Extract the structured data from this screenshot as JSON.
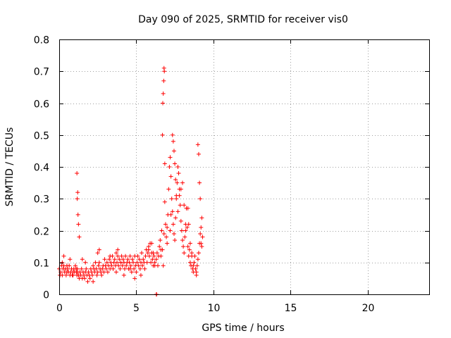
{
  "chart_data": {
    "type": "scatter",
    "title": "Day 090 of 2025, SRMTID for receiver vis0",
    "xlabel": "GPS time / hours",
    "ylabel": "SRMTID / TECUs",
    "xlim": [
      0,
      24
    ],
    "ylim": [
      0,
      0.8
    ],
    "xticks": [
      0,
      5,
      10,
      15,
      20
    ],
    "yticks": [
      0,
      0.1,
      0.2,
      0.3,
      0.4,
      0.5,
      0.6,
      0.7,
      0.8
    ],
    "xtick_labels": [
      "0",
      "5",
      "10",
      "15",
      "20"
    ],
    "ytick_labels": [
      "0",
      "0.1",
      "0.2",
      "0.3",
      "0.4",
      "0.5",
      "0.6",
      "0.7",
      "0.8"
    ],
    "grid": true,
    "marker": "+",
    "color": "#ff0000",
    "series": [
      {
        "name": "vis0",
        "x": [
          0.0,
          0.1,
          0.15,
          0.2,
          0.25,
          0.3,
          0.35,
          0.4,
          0.45,
          0.5,
          0.55,
          0.6,
          0.65,
          0.7,
          0.75,
          0.8,
          0.85,
          0.9,
          0.95,
          1.0,
          1.05,
          1.1,
          1.12,
          1.15,
          1.18,
          1.2,
          1.25,
          1.3,
          1.35,
          1.4,
          1.45,
          1.5,
          1.55,
          1.6,
          1.65,
          1.7,
          1.75,
          1.8,
          1.85,
          1.9,
          1.95,
          2.0,
          2.05,
          2.1,
          2.15,
          2.2,
          2.25,
          2.3,
          2.35,
          2.4,
          2.45,
          2.5,
          2.55,
          2.6,
          2.65,
          2.7,
          2.75,
          2.8,
          2.85,
          2.9,
          2.95,
          3.0,
          3.05,
          3.1,
          3.15,
          3.2,
          3.25,
          3.3,
          3.35,
          3.4,
          3.45,
          3.5,
          3.55,
          3.6,
          3.65,
          3.7,
          3.75,
          3.8,
          3.85,
          3.9,
          3.95,
          4.0,
          4.05,
          4.1,
          4.15,
          4.2,
          4.25,
          4.3,
          4.35,
          4.4,
          4.45,
          4.5,
          4.55,
          4.6,
          4.65,
          4.7,
          4.75,
          4.8,
          4.85,
          4.9,
          4.95,
          5.0,
          5.05,
          5.1,
          5.15,
          5.2,
          5.25,
          5.3,
          5.35,
          5.4,
          5.45,
          5.5,
          5.55,
          5.6,
          5.65,
          5.7,
          5.75,
          5.8,
          5.85,
          5.9,
          5.95,
          6.0,
          6.05,
          6.1,
          6.15,
          6.2,
          6.3,
          6.35,
          6.4,
          6.45,
          6.5,
          6.55,
          6.6,
          6.65,
          6.7,
          6.72,
          6.75,
          6.78,
          6.8,
          6.82,
          6.85,
          6.9,
          6.95,
          7.0,
          7.05,
          7.1,
          7.15,
          7.2,
          7.25,
          7.3,
          7.35,
          7.4,
          7.45,
          7.5,
          7.55,
          7.6,
          7.65,
          7.7,
          7.75,
          7.8,
          7.85,
          7.9,
          7.95,
          8.0,
          8.05,
          8.1,
          8.15,
          8.2,
          8.25,
          8.3,
          8.35,
          8.4,
          8.45,
          8.5,
          8.55,
          8.6,
          8.65,
          8.7,
          8.75,
          8.8,
          8.85,
          8.9,
          8.95,
          9.0,
          9.05,
          9.1,
          9.15,
          9.2,
          9.25,
          9.3,
          0.05,
          0.2,
          0.3,
          0.5,
          0.7,
          0.9,
          1.15,
          1.17,
          1.2,
          1.22,
          1.25,
          1.3,
          1.5,
          1.7,
          2.2,
          2.5,
          2.6,
          3.3,
          3.7,
          3.8,
          4.0,
          4.2,
          4.6,
          4.9,
          5.3,
          5.8,
          6.0,
          6.1,
          6.2,
          6.6,
          6.7,
          6.75,
          6.8,
          6.85,
          7.0,
          7.2,
          7.25,
          7.35,
          7.4,
          7.45,
          7.5,
          7.55,
          7.6,
          7.7,
          7.8,
          7.9,
          8.0,
          8.1,
          8.2,
          8.35,
          8.4,
          8.5,
          8.6,
          8.7,
          8.9,
          9.0,
          9.05,
          9.1,
          9.15,
          9.2,
          9.25,
          6.3,
          6.32
        ],
        "y": [
          0.08,
          0.07,
          0.09,
          0.06,
          0.08,
          0.09,
          0.07,
          0.08,
          0.06,
          0.07,
          0.08,
          0.07,
          0.09,
          0.06,
          0.07,
          0.08,
          0.06,
          0.07,
          0.08,
          0.07,
          0.09,
          0.08,
          0.07,
          0.06,
          0.08,
          0.07,
          0.06,
          0.05,
          0.07,
          0.06,
          0.08,
          0.05,
          0.07,
          0.06,
          0.05,
          0.07,
          0.08,
          0.06,
          0.04,
          0.07,
          0.06,
          0.05,
          0.08,
          0.07,
          0.06,
          0.09,
          0.08,
          0.07,
          0.1,
          0.08,
          0.06,
          0.07,
          0.09,
          0.1,
          0.08,
          0.07,
          0.06,
          0.08,
          0.09,
          0.07,
          0.11,
          0.09,
          0.08,
          0.1,
          0.07,
          0.09,
          0.11,
          0.08,
          0.1,
          0.09,
          0.12,
          0.08,
          0.1,
          0.11,
          0.09,
          0.07,
          0.1,
          0.12,
          0.09,
          0.11,
          0.08,
          0.1,
          0.12,
          0.09,
          0.11,
          0.1,
          0.08,
          0.12,
          0.09,
          0.1,
          0.11,
          0.08,
          0.1,
          0.12,
          0.09,
          0.07,
          0.11,
          0.1,
          0.08,
          0.12,
          0.09,
          0.07,
          0.1,
          0.12,
          0.09,
          0.11,
          0.08,
          0.1,
          0.13,
          0.09,
          0.11,
          0.1,
          0.08,
          0.12,
          0.14,
          0.1,
          0.13,
          0.15,
          0.12,
          0.16,
          0.1,
          0.13,
          0.11,
          0.09,
          0.12,
          0.1,
          0.11,
          0.13,
          0.09,
          0.12,
          0.15,
          0.17,
          0.14,
          0.2,
          0.5,
          0.6,
          0.63,
          0.67,
          0.71,
          0.7,
          0.41,
          0.22,
          0.18,
          0.21,
          0.25,
          0.33,
          0.4,
          0.43,
          0.37,
          0.3,
          0.26,
          0.22,
          0.19,
          0.17,
          0.24,
          0.3,
          0.35,
          0.4,
          0.38,
          0.33,
          0.28,
          0.23,
          0.2,
          0.17,
          0.15,
          0.13,
          0.18,
          0.22,
          0.27,
          0.21,
          0.15,
          0.12,
          0.14,
          0.1,
          0.09,
          0.12,
          0.08,
          0.07,
          0.1,
          0.12,
          0.08,
          0.07,
          0.09,
          0.11,
          0.13,
          0.16,
          0.19,
          0.21,
          0.24,
          0.18,
          0.06,
          0.1,
          0.12,
          0.09,
          0.11,
          0.06,
          0.38,
          0.3,
          0.32,
          0.25,
          0.22,
          0.18,
          0.11,
          0.1,
          0.04,
          0.13,
          0.14,
          0.12,
          0.13,
          0.14,
          0.1,
          0.06,
          0.08,
          0.05,
          0.06,
          0.14,
          0.16,
          0.13,
          0.09,
          0.12,
          0.14,
          0.09,
          0.19,
          0.29,
          0.16,
          0.2,
          0.25,
          0.5,
          0.48,
          0.45,
          0.41,
          0.36,
          0.31,
          0.26,
          0.31,
          0.33,
          0.35,
          0.28,
          0.2,
          0.27,
          0.22,
          0.16,
          0.13,
          0.09,
          0.06,
          0.47,
          0.44,
          0.35,
          0.3,
          0.16,
          0.15,
          0.0,
          0.0
        ]
      }
    ]
  }
}
